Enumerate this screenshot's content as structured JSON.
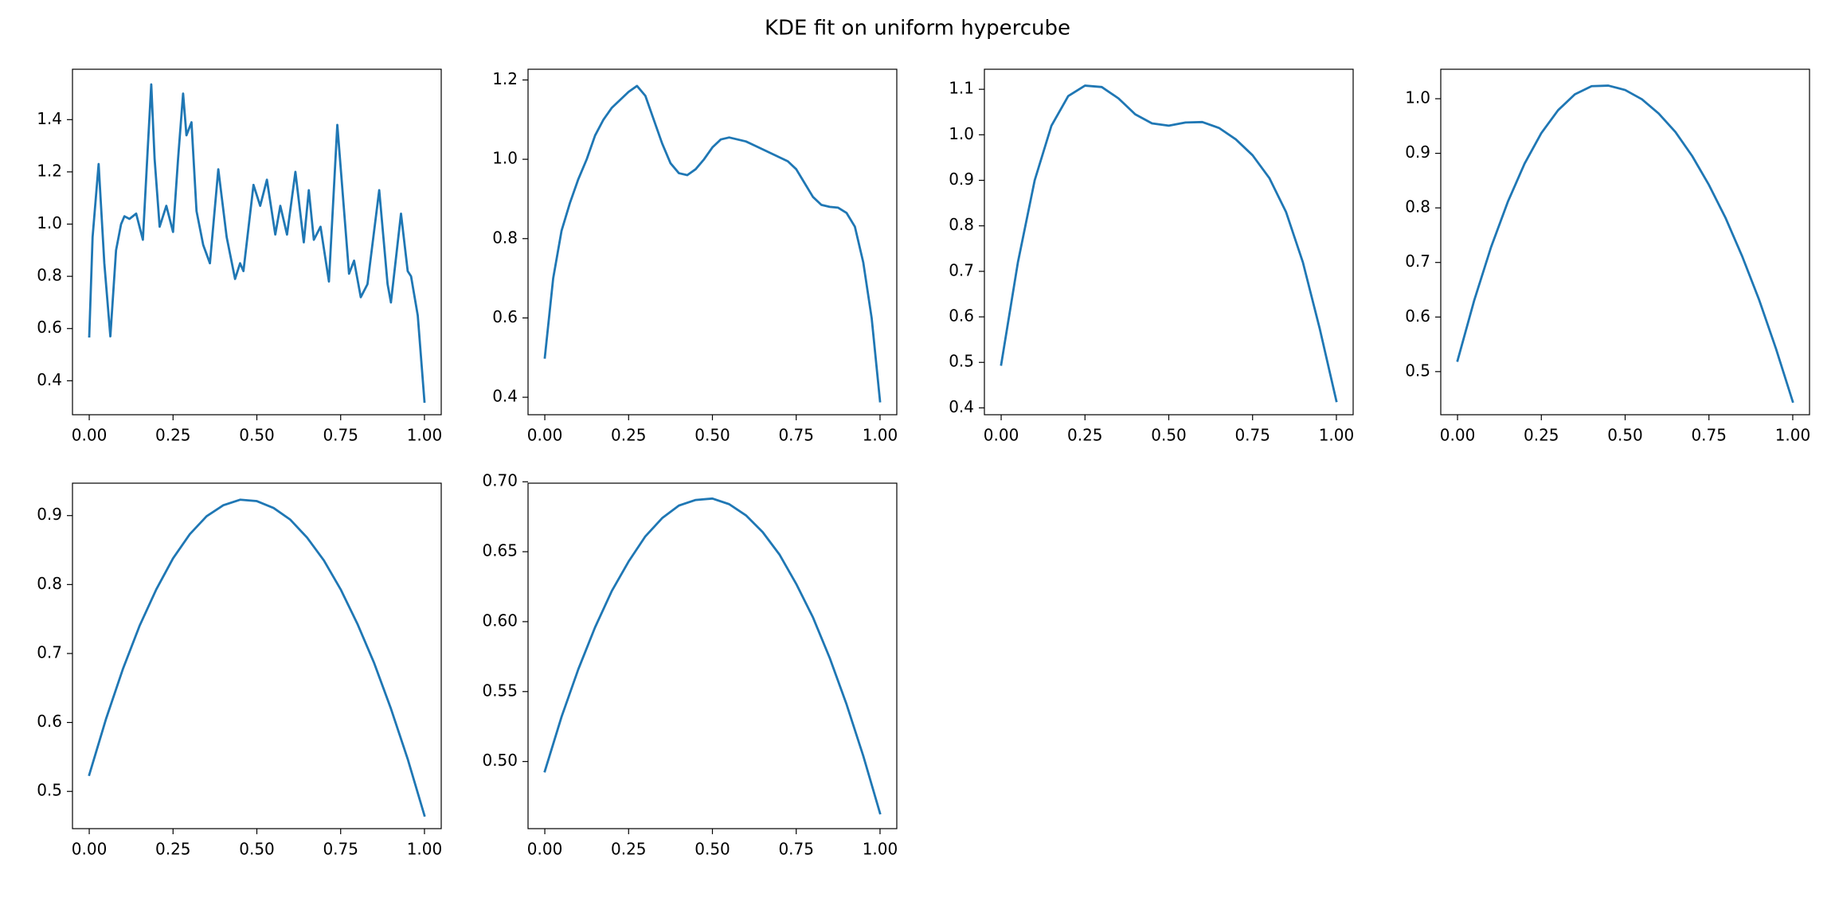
{
  "title": "KDE fit on uniform hypercube",
  "chart_data": [
    {
      "type": "line",
      "color": "#1f77b4",
      "x": [
        0,
        0.01,
        0.028,
        0.045,
        0.063,
        0.08,
        0.095,
        0.105,
        0.12,
        0.14,
        0.16,
        0.175,
        0.185,
        0.195,
        0.21,
        0.23,
        0.25,
        0.265,
        0.28,
        0.29,
        0.305,
        0.32,
        0.34,
        0.36,
        0.385,
        0.41,
        0.435,
        0.45,
        0.46,
        0.49,
        0.51,
        0.53,
        0.555,
        0.57,
        0.59,
        0.615,
        0.64,
        0.655,
        0.67,
        0.69,
        0.715,
        0.74,
        0.775,
        0.79,
        0.81,
        0.83,
        0.865,
        0.89,
        0.9,
        0.93,
        0.95,
        0.96,
        0.98,
        1
      ],
      "values": [
        0.57,
        0.95,
        1.23,
        0.85,
        0.57,
        0.9,
        1.0,
        1.03,
        1.02,
        1.04,
        0.94,
        1.3,
        1.535,
        1.25,
        0.99,
        1.07,
        0.97,
        1.25,
        1.5,
        1.34,
        1.39,
        1.05,
        0.92,
        0.85,
        1.21,
        0.95,
        0.79,
        0.85,
        0.82,
        1.15,
        1.07,
        1.17,
        0.96,
        1.07,
        0.96,
        1.2,
        0.93,
        1.13,
        0.94,
        0.99,
        0.78,
        1.38,
        0.81,
        0.86,
        0.72,
        0.77,
        1.13,
        0.77,
        0.7,
        1.04,
        0.82,
        0.8,
        0.65,
        0.32
      ],
      "xlim": [
        -0.05,
        1.05
      ],
      "ylim": [
        0.27,
        1.593
      ],
      "xticks": [
        {
          "value": 0,
          "label": "0.00"
        },
        0.25,
        {
          "value": 0.5,
          "label": "0.50"
        },
        0.75,
        {
          "value": 1,
          "label": "1.00"
        }
      ],
      "yticks": [
        0.4,
        0.6,
        0.8,
        {
          "value": 1,
          "label": "1.0"
        },
        1.2,
        1.4
      ]
    },
    {
      "type": "line",
      "color": "#1f77b4",
      "x": [
        0,
        0.025,
        0.05,
        0.075,
        0.1,
        0.125,
        0.15,
        0.175,
        0.2,
        0.225,
        0.25,
        0.275,
        0.3,
        0.325,
        0.35,
        0.375,
        0.4,
        0.425,
        0.45,
        0.475,
        0.5,
        0.525,
        0.55,
        0.575,
        0.6,
        0.625,
        0.65,
        0.675,
        0.7,
        0.725,
        0.75,
        0.775,
        0.8,
        0.825,
        0.85,
        0.875,
        0.9,
        0.925,
        0.95,
        0.975,
        1
      ],
      "values": [
        0.5,
        0.7,
        0.82,
        0.89,
        0.95,
        1.0,
        1.06,
        1.1,
        1.13,
        1.15,
        1.17,
        1.185,
        1.16,
        1.1,
        1.04,
        0.99,
        0.965,
        0.96,
        0.975,
        1.0,
        1.03,
        1.05,
        1.055,
        1.05,
        1.045,
        1.035,
        1.025,
        1.015,
        1.005,
        0.995,
        0.975,
        0.94,
        0.905,
        0.885,
        0.88,
        0.878,
        0.865,
        0.83,
        0.74,
        0.6,
        0.39
      ],
      "xlim": [
        -0.05,
        1.05
      ],
      "ylim": [
        0.356,
        1.227
      ],
      "xticks": [
        {
          "value": 0,
          "label": "0.00"
        },
        0.25,
        {
          "value": 0.5,
          "label": "0.50"
        },
        0.75,
        {
          "value": 1,
          "label": "1.00"
        }
      ],
      "yticks": [
        0.4,
        0.6,
        0.8,
        {
          "value": 1,
          "label": "1.0"
        },
        1.2
      ]
    },
    {
      "type": "line",
      "color": "#1f77b4",
      "x": [
        0,
        0.05,
        0.1,
        0.15,
        0.2,
        0.25,
        0.3,
        0.35,
        0.4,
        0.45,
        0.5,
        0.55,
        0.6,
        0.65,
        0.7,
        0.75,
        0.8,
        0.85,
        0.9,
        0.95,
        1
      ],
      "values": [
        0.495,
        0.72,
        0.9,
        1.02,
        1.085,
        1.108,
        1.105,
        1.08,
        1.045,
        1.025,
        1.02,
        1.027,
        1.028,
        1.015,
        0.99,
        0.955,
        0.905,
        0.83,
        0.72,
        0.575,
        0.415
      ],
      "xlim": [
        -0.05,
        1.05
      ],
      "ylim": [
        0.385,
        1.144
      ],
      "xticks": [
        {
          "value": 0,
          "label": "0.00"
        },
        0.25,
        {
          "value": 0.5,
          "label": "0.50"
        },
        0.75,
        {
          "value": 1,
          "label": "1.00"
        }
      ],
      "yticks": [
        0.4,
        0.5,
        0.6,
        0.7,
        0.8,
        0.9,
        {
          "value": 1,
          "label": "1.0"
        },
        1.1
      ]
    },
    {
      "type": "line",
      "color": "#1f77b4",
      "x": [
        0,
        0.05,
        0.1,
        0.15,
        0.2,
        0.25,
        0.3,
        0.35,
        0.4,
        0.45,
        0.5,
        0.55,
        0.6,
        0.65,
        0.7,
        0.75,
        0.8,
        0.85,
        0.9,
        0.95,
        1
      ],
      "values": [
        0.52,
        0.631,
        0.728,
        0.811,
        0.881,
        0.937,
        0.979,
        1.008,
        1.023,
        1.024,
        1.016,
        0.999,
        0.973,
        0.939,
        0.895,
        0.842,
        0.781,
        0.71,
        0.631,
        0.542,
        0.445
      ],
      "xlim": [
        -0.05,
        1.05
      ],
      "ylim": [
        0.421,
        1.054
      ],
      "xticks": [
        {
          "value": 0,
          "label": "0.00"
        },
        0.25,
        {
          "value": 0.5,
          "label": "0.50"
        },
        0.75,
        {
          "value": 1,
          "label": "1.00"
        }
      ],
      "yticks": [
        0.5,
        0.6,
        0.7,
        0.8,
        0.9,
        {
          "value": 1,
          "label": "1.0"
        }
      ]
    },
    {
      "type": "line",
      "color": "#1f77b4",
      "x": [
        0,
        0.05,
        0.1,
        0.15,
        0.2,
        0.25,
        0.3,
        0.35,
        0.4,
        0.45,
        0.5,
        0.55,
        0.6,
        0.65,
        0.7,
        0.75,
        0.8,
        0.85,
        0.9,
        0.95,
        1
      ],
      "values": [
        0.524,
        0.605,
        0.677,
        0.74,
        0.793,
        0.838,
        0.873,
        0.899,
        0.915,
        0.923,
        0.921,
        0.911,
        0.894,
        0.868,
        0.835,
        0.793,
        0.743,
        0.686,
        0.62,
        0.547,
        0.465
      ],
      "xlim": [
        -0.05,
        1.05
      ],
      "ylim": [
        0.446,
        0.947
      ],
      "xticks": [
        {
          "value": 0,
          "label": "0.00"
        },
        0.25,
        {
          "value": 0.5,
          "label": "0.50"
        },
        0.75,
        {
          "value": 1,
          "label": "1.00"
        }
      ],
      "yticks": [
        0.5,
        0.6,
        0.7,
        0.8,
        0.9
      ]
    },
    {
      "type": "line",
      "color": "#1f77b4",
      "x": [
        0,
        0.05,
        0.1,
        0.15,
        0.2,
        0.25,
        0.3,
        0.35,
        0.4,
        0.45,
        0.5,
        0.55,
        0.6,
        0.65,
        0.7,
        0.75,
        0.8,
        0.85,
        0.9,
        0.95,
        1
      ],
      "values": [
        0.493,
        0.532,
        0.566,
        0.596,
        0.622,
        0.643,
        0.661,
        0.674,
        0.683,
        0.687,
        0.688,
        0.684,
        0.676,
        0.664,
        0.648,
        0.627,
        0.603,
        0.574,
        0.541,
        0.504,
        0.463
      ],
      "xlim": [
        -0.05,
        1.05
      ],
      "ylim": [
        0.452,
        0.699
      ],
      "xticks": [
        {
          "value": 0,
          "label": "0.00"
        },
        0.25,
        {
          "value": 0.5,
          "label": "0.50"
        },
        0.75,
        {
          "value": 1,
          "label": "1.00"
        }
      ],
      "yticks": [
        {
          "value": 0.5,
          "label": "0.50"
        },
        0.55,
        {
          "value": 0.6,
          "label": "0.60"
        },
        0.65,
        {
          "value": 0.7,
          "label": "0.70"
        }
      ]
    }
  ]
}
